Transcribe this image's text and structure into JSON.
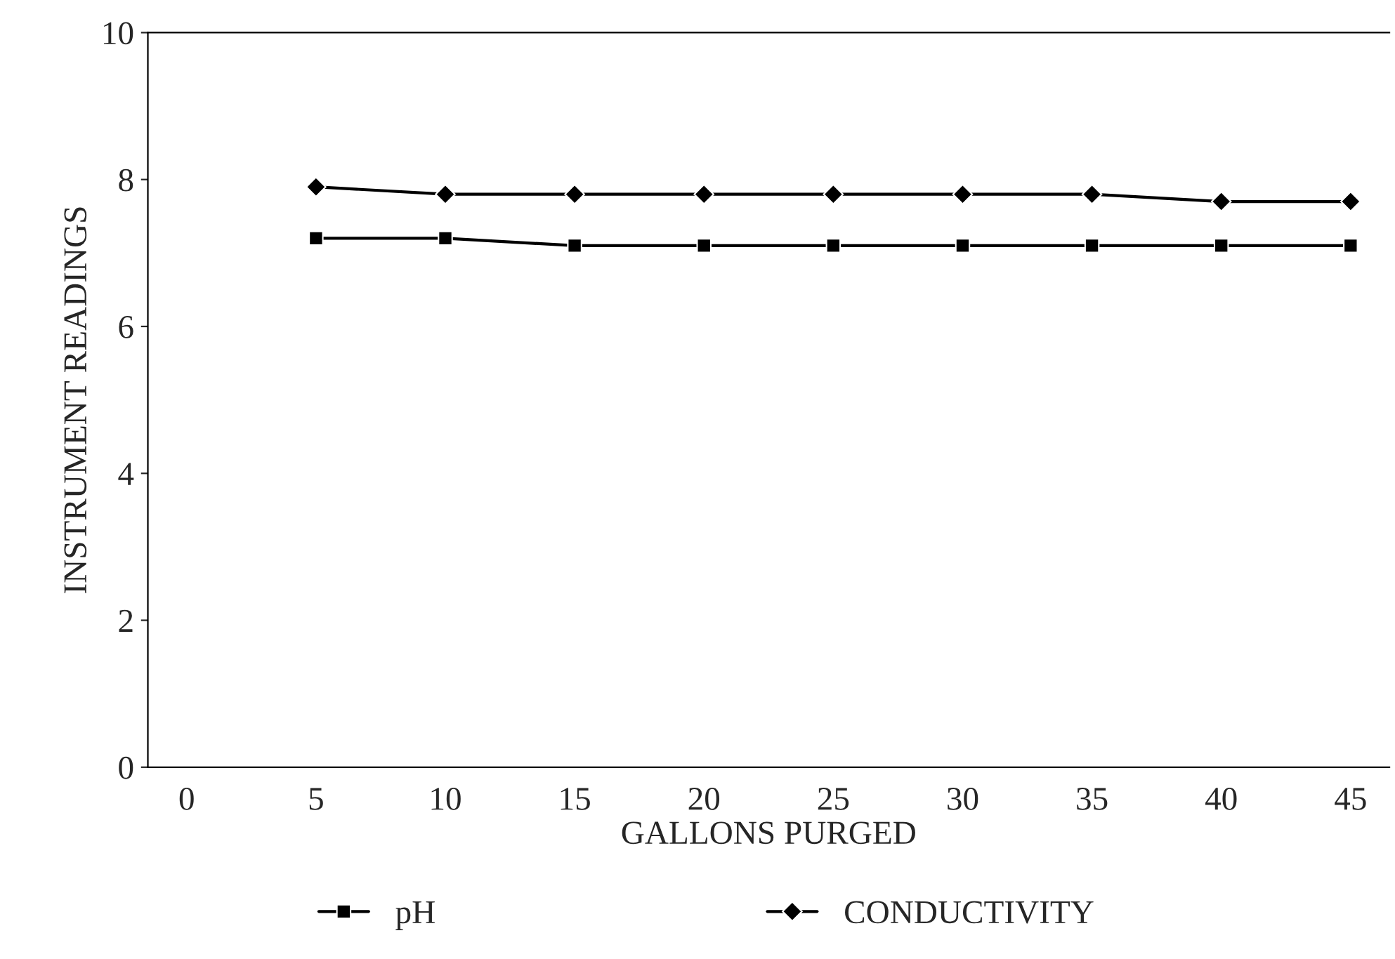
{
  "chart_data": {
    "type": "line",
    "xlabel": "GALLONS PURGED",
    "ylabel": "INSTRUMENT READINGS",
    "x": [
      5,
      10,
      15,
      20,
      25,
      30,
      35,
      40,
      45
    ],
    "series": [
      {
        "name": "pH",
        "color": "#000000",
        "marker": "square",
        "values": [
          7.2,
          7.2,
          7.1,
          7.1,
          7.1,
          7.1,
          7.1,
          7.1,
          7.1
        ]
      },
      {
        "name": "CONDUCTIVITY",
        "color": "#000000",
        "marker": "diamond",
        "values": [
          7.9,
          7.8,
          7.8,
          7.8,
          7.8,
          7.8,
          7.8,
          7.7,
          7.7
        ]
      }
    ],
    "xlim": [
      -1.5,
      46.5
    ],
    "xticks": [
      0,
      5,
      10,
      15,
      20,
      25,
      30,
      35,
      40,
      45
    ],
    "ylim": [
      0,
      10
    ],
    "yticks": [
      0,
      2,
      4,
      6,
      8,
      10
    ],
    "grid": false,
    "legend": "bottom"
  }
}
